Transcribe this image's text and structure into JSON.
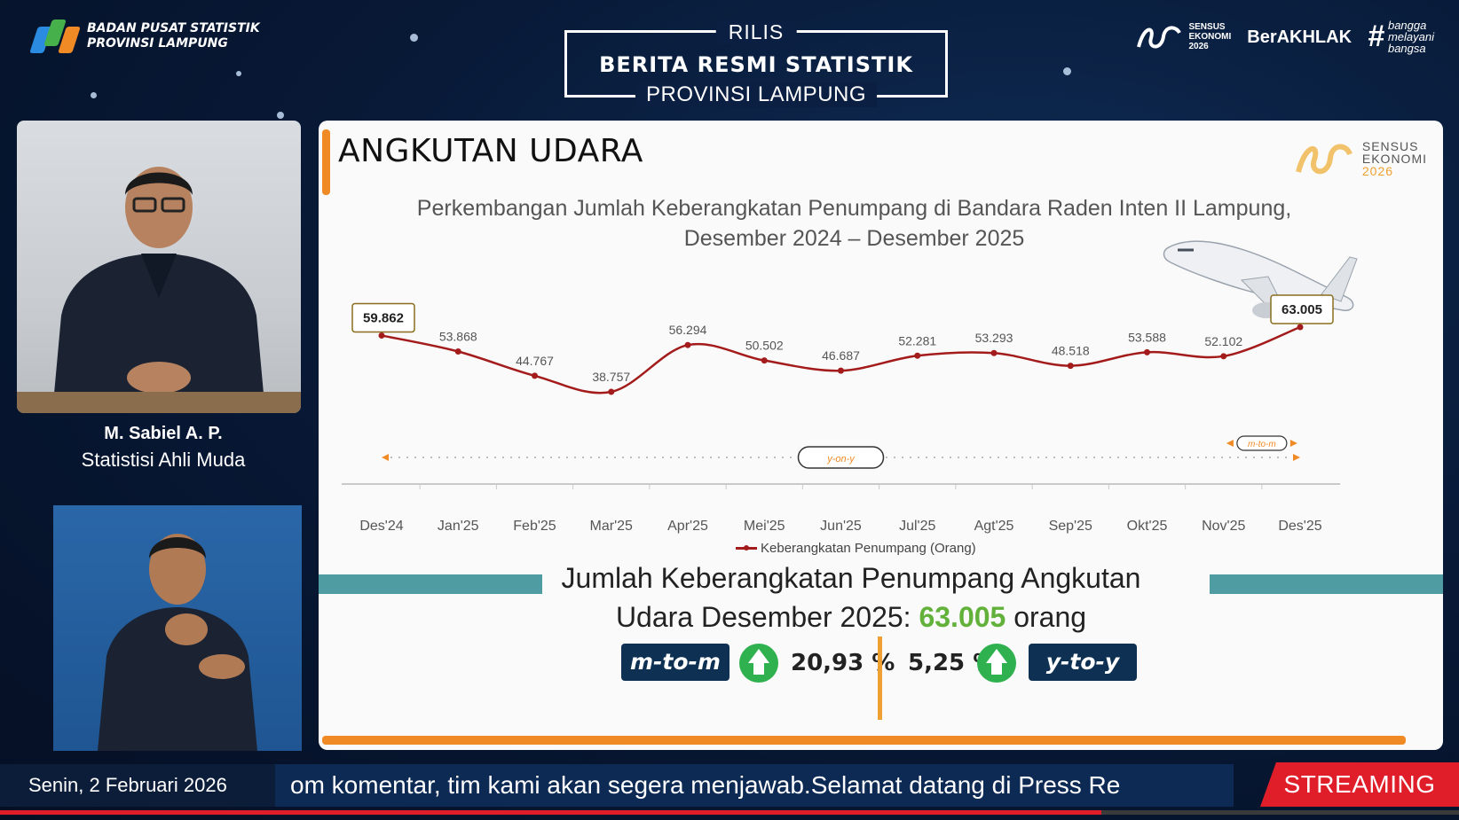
{
  "header": {
    "org_line1": "BADAN PUSAT STATISTIK",
    "org_line2": "PROVINSI LAMPUNG",
    "release_top": "RILIS",
    "release_main": "BERITA RESMI STATISTIK",
    "release_bottom": "PROVINSI LAMPUNG",
    "sensus_line1": "SENSUS",
    "sensus_line2": "EKONOMI",
    "sensus_line3": "2026",
    "berakhlak": "BerAKHLAK",
    "bangga_line1": "bangga",
    "bangga_line2": "melayani",
    "bangga_line3": "bangsa"
  },
  "speaker": {
    "name": "M. Sabiel A. P.",
    "role": "Statistisi Ahli Muda"
  },
  "slide": {
    "title": "ANGKUTAN UDARA",
    "chart_title_line1": "Perkembangan Jumlah Keberangkatan Penumpang di Bandara Raden Inten II Lampung,",
    "chart_title_line2": "Desember 2024 – Desember 2025",
    "legend_label": "Keberangkatan Penumpang (Orang)",
    "summary_line1": "Jumlah Keberangkatan Penumpang Angkutan",
    "summary_line2_prefix": "Udara Desember 2025:",
    "summary_value": "63.005",
    "summary_unit": "orang",
    "mtom_label": "m-to-m",
    "mtom_value": "20,93 %",
    "ytoy_label": "y-to-y",
    "ytoy_value": "5,25 %",
    "yony_tag": "y-on-y",
    "mtom_tag": "m-to-m"
  },
  "chart_data": {
    "type": "line",
    "categories": [
      "Des'24",
      "Jan'25",
      "Feb'25",
      "Mar'25",
      "Apr'25",
      "Mei'25",
      "Jun'25",
      "Jul'25",
      "Agt'25",
      "Sep'25",
      "Okt'25",
      "Nov'25",
      "Des'25"
    ],
    "series": [
      {
        "name": "Keberangkatan Penumpang (Orang)",
        "values": [
          59862,
          53868,
          44767,
          38757,
          56294,
          50502,
          46687,
          52281,
          53293,
          48518,
          53588,
          52102,
          63005
        ]
      }
    ],
    "data_labels": [
      "59.862",
      "53.868",
      "44.767",
      "38.757",
      "56.294",
      "50.502",
      "46.687",
      "52.281",
      "53.293",
      "48.518",
      "53.588",
      "52.102",
      "63.005"
    ],
    "highlighted": [
      "Des'24",
      "Des'25"
    ],
    "title": "Perkembangan Jumlah Keberangkatan Penumpang di Bandara Raden Inten II Lampung, Desember 2024 – Desember 2025",
    "legend_position": "bottom",
    "grid": false,
    "line_color": "#a31b1b"
  },
  "footer": {
    "date": "Senin, 2 Februari 2026",
    "ticker": "om komentar, tim kami akan segera menjawab.Selamat datang di Press Re",
    "streaming": "STREAMING",
    "progress_fraction": 0.755
  },
  "colors": {
    "accent_orange": "#f08a24",
    "teal": "#4f9ca3",
    "value_green": "#62b13a",
    "navy_pill": "#0e3153",
    "streaming_red": "#e01e2a"
  }
}
